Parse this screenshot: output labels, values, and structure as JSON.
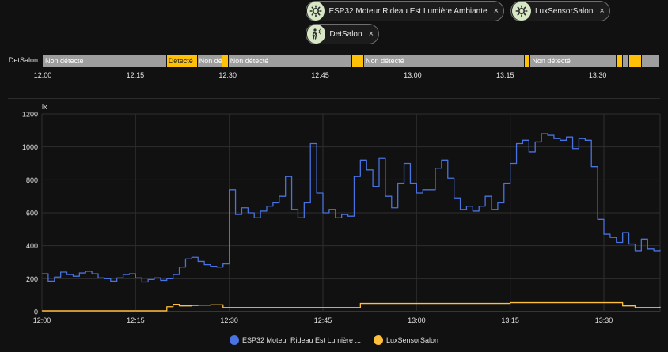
{
  "chips": [
    {
      "label": "ESP32 Moteur Rideau Est Lumière Ambiante",
      "icon": "brightness-icon",
      "close": "×"
    },
    {
      "label": "LuxSensorSalon",
      "icon": "brightness-icon",
      "close": "×"
    },
    {
      "label": "DetSalon",
      "icon": "motion-sensor-icon",
      "close": "×"
    }
  ],
  "timeline": {
    "entity": "DetSalon",
    "segments": [
      {
        "state": "Non détecté",
        "detected": false,
        "start": "12:00",
        "end": "12:20"
      },
      {
        "state": "Détecté",
        "detected": true,
        "start": "12:20",
        "end": "12:25"
      },
      {
        "state": "Non détecté",
        "detected": false,
        "start": "12:25",
        "end": "12:29"
      },
      {
        "state": "",
        "detected": true,
        "start": "12:29",
        "end": "12:30"
      },
      {
        "state": "Non détecté",
        "detected": false,
        "start": "12:30",
        "end": "12:50"
      },
      {
        "state": "",
        "detected": true,
        "start": "12:50",
        "end": "12:52"
      },
      {
        "state": "Non détecté",
        "detected": false,
        "start": "12:52",
        "end": "13:18"
      },
      {
        "state": "",
        "detected": true,
        "start": "13:18",
        "end": "13:19"
      },
      {
        "state": "Non détecté",
        "detected": false,
        "start": "13:19",
        "end": "13:33"
      },
      {
        "state": "",
        "detected": true,
        "start": "13:33",
        "end": "13:34"
      },
      {
        "state": "",
        "detected": false,
        "start": "13:34",
        "end": "13:35"
      },
      {
        "state": "",
        "detected": true,
        "start": "13:35",
        "end": "13:37"
      },
      {
        "state": "",
        "detected": false,
        "start": "13:37",
        "end": "13:40"
      }
    ],
    "ticks": [
      "12:00",
      "12:15",
      "12:30",
      "12:45",
      "13:00",
      "13:15",
      "13:30"
    ]
  },
  "colors": {
    "blue": "#4a72e0",
    "orange": "#ffbe3c",
    "detected": "#ffc107",
    "not_detected": "#9e9e9e"
  },
  "chart_data": {
    "type": "line",
    "ylabel": "lx",
    "ylim": [
      0,
      1200
    ],
    "yticks": [
      0,
      200,
      400,
      600,
      800,
      1000,
      1200
    ],
    "xlim": [
      "12:00",
      "13:39"
    ],
    "xticks": [
      "12:00",
      "12:15",
      "12:30",
      "12:45",
      "13:00",
      "13:15",
      "13:30"
    ],
    "grid": true,
    "legend": "bottom",
    "series": [
      {
        "name": "ESP32 Moteur Rideau Est Lumière ...",
        "color": "#4a72e0",
        "step": true,
        "x": [
          "12:00",
          "12:01",
          "12:02",
          "12:03",
          "12:04",
          "12:05",
          "12:06",
          "12:07",
          "12:08",
          "12:09",
          "12:10",
          "12:11",
          "12:12",
          "12:13",
          "12:14",
          "12:15",
          "12:16",
          "12:17",
          "12:18",
          "12:19",
          "12:20",
          "12:21",
          "12:22",
          "12:23",
          "12:24",
          "12:25",
          "12:26",
          "12:27",
          "12:28",
          "12:29",
          "12:30",
          "12:31",
          "12:32",
          "12:33",
          "12:34",
          "12:35",
          "12:36",
          "12:37",
          "12:38",
          "12:39",
          "12:40",
          "12:41",
          "12:42",
          "12:43",
          "12:44",
          "12:45",
          "12:46",
          "12:47",
          "12:48",
          "12:49",
          "12:50",
          "12:51",
          "12:52",
          "12:53",
          "12:54",
          "12:55",
          "12:56",
          "12:57",
          "12:58",
          "12:59",
          "13:00",
          "13:01",
          "13:02",
          "13:03",
          "13:04",
          "13:05",
          "13:06",
          "13:07",
          "13:08",
          "13:09",
          "13:10",
          "13:11",
          "13:12",
          "13:13",
          "13:14",
          "13:15",
          "13:16",
          "13:17",
          "13:18",
          "13:19",
          "13:20",
          "13:21",
          "13:22",
          "13:23",
          "13:24",
          "13:25",
          "13:26",
          "13:27",
          "13:28",
          "13:29",
          "13:30",
          "13:31",
          "13:32",
          "13:33",
          "13:34",
          "13:35",
          "13:36",
          "13:37",
          "13:38",
          "13:39"
        ],
        "values": [
          230,
          185,
          210,
          240,
          225,
          215,
          235,
          245,
          230,
          205,
          200,
          185,
          205,
          225,
          230,
          205,
          180,
          195,
          205,
          190,
          200,
          225,
          270,
          320,
          330,
          305,
          285,
          275,
          270,
          290,
          740,
          590,
          630,
          600,
          570,
          610,
          640,
          660,
          700,
          820,
          620,
          570,
          660,
          1020,
          720,
          600,
          620,
          570,
          590,
          580,
          820,
          920,
          860,
          760,
          930,
          700,
          630,
          780,
          900,
          780,
          720,
          740,
          740,
          870,
          920,
          810,
          690,
          620,
          640,
          610,
          640,
          700,
          620,
          660,
          780,
          900,
          1020,
          1040,
          970,
          1030,
          1080,
          1070,
          1050,
          1040,
          1060,
          990,
          1050,
          1040,
          880,
          560,
          470,
          450,
          420,
          480,
          410,
          370,
          440,
          380,
          370,
          375
        ]
      },
      {
        "name": "LuxSensorSalon",
        "color": "#ffbe3c",
        "step": true,
        "x": [
          "12:00",
          "12:19",
          "12:20",
          "12:21",
          "12:22",
          "12:23",
          "12:24",
          "12:25",
          "12:26",
          "12:27",
          "12:28",
          "12:29",
          "12:30",
          "12:50",
          "12:51",
          "13:00",
          "13:15",
          "13:30",
          "13:33",
          "13:35",
          "13:39"
        ],
        "values": [
          5,
          5,
          30,
          45,
          35,
          35,
          38,
          40,
          40,
          42,
          42,
          25,
          25,
          25,
          50,
          50,
          55,
          55,
          35,
          25,
          30
        ]
      }
    ]
  }
}
